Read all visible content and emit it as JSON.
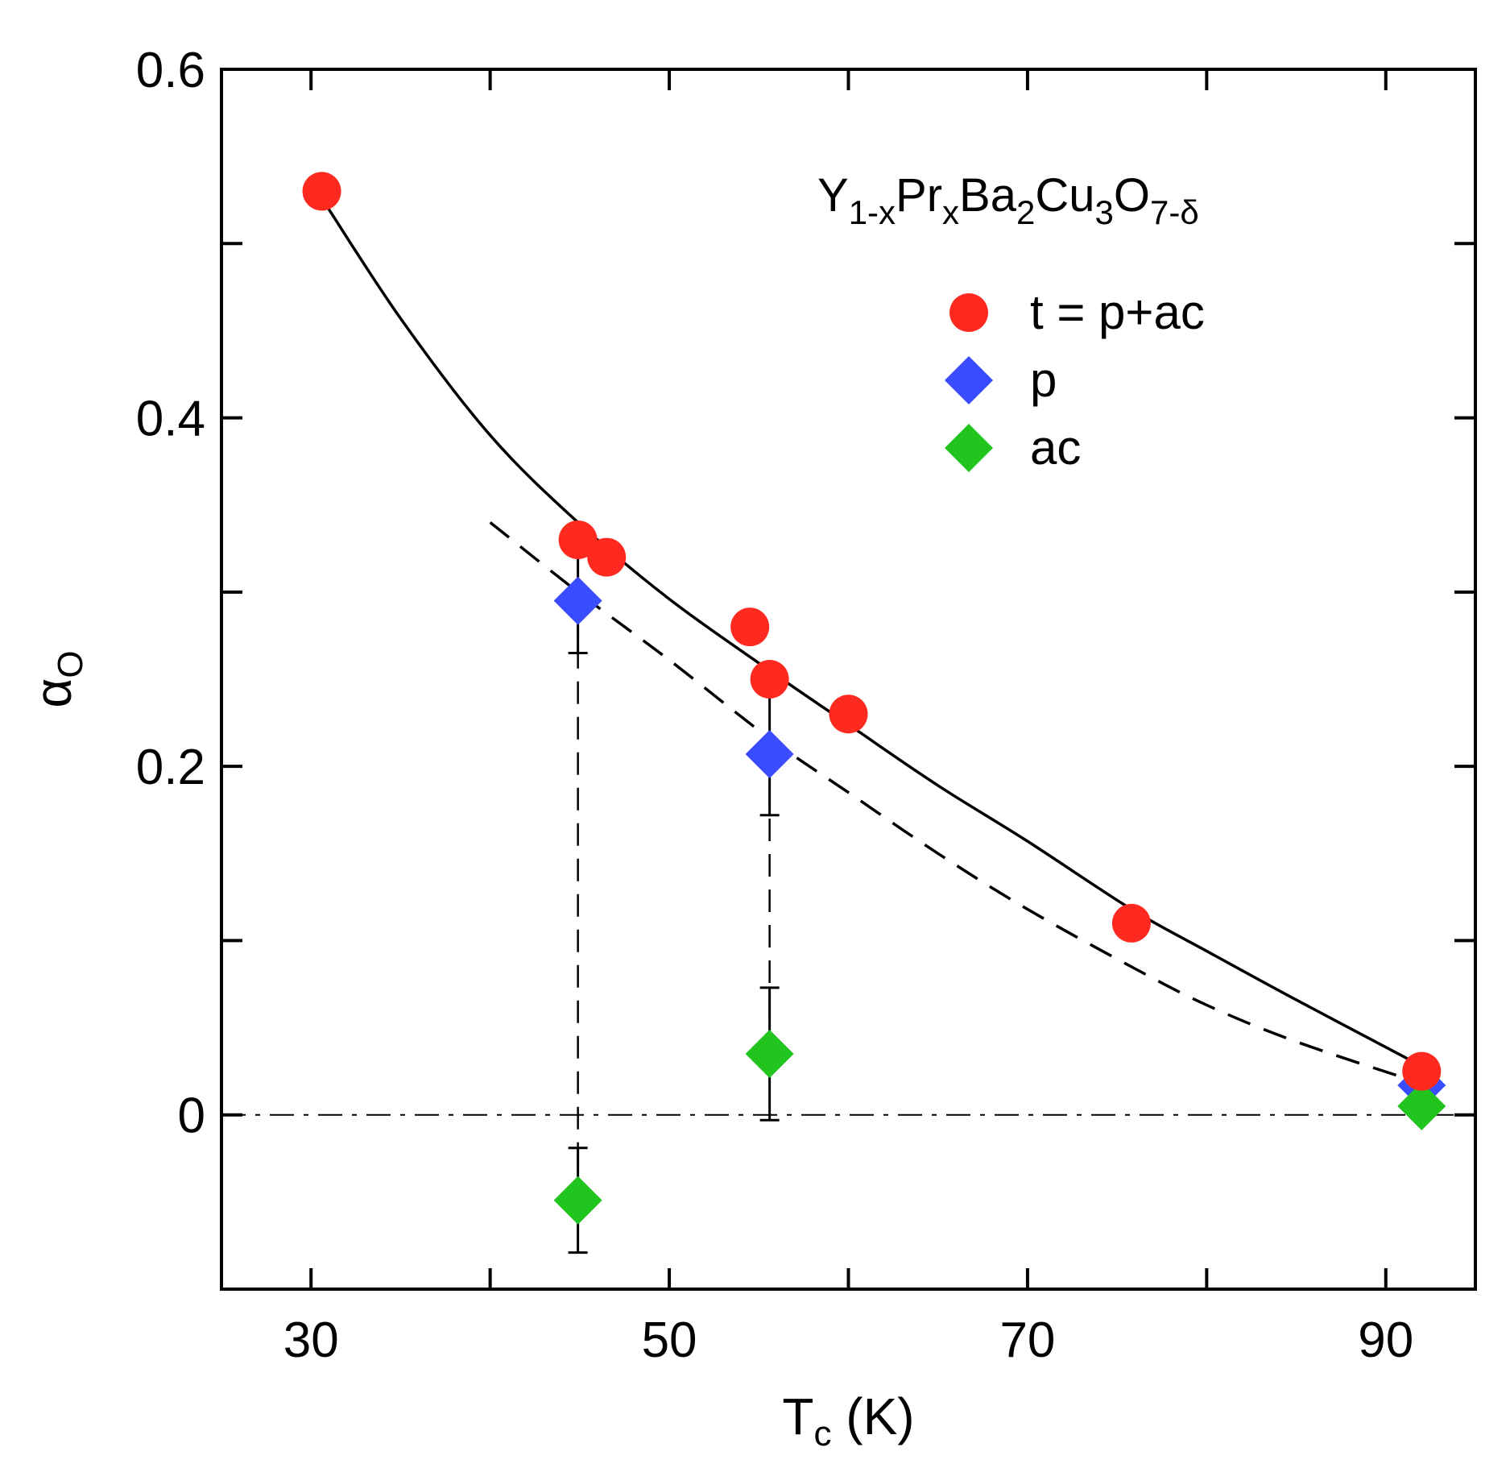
{
  "chart_data": {
    "type": "scatter",
    "xlabel": {
      "main": "T",
      "sub": "c",
      "unit": " (K)"
    },
    "ylabel": {
      "main": "α",
      "sub": "O"
    },
    "xlim": [
      25,
      95
    ],
    "ylim": [
      -0.1,
      0.6
    ],
    "x_major_ticks": [
      30,
      50,
      70,
      90
    ],
    "x_minor_ticks": [
      40,
      60,
      80
    ],
    "y_major_ticks": [
      0,
      0.2,
      0.4,
      0.6
    ],
    "y_minor_ticks": [
      -0.1,
      0.1,
      0.3,
      0.5
    ],
    "x_tick_labels": [
      "30",
      "50",
      "70",
      "90"
    ],
    "y_tick_labels": [
      "0",
      "0.2",
      "0.4",
      "0.6"
    ],
    "grid": false,
    "legend_position": "top-right",
    "annotation": {
      "parts": [
        {
          "text": "Y",
          "sub": false
        },
        {
          "text": "1-x",
          "sub": true
        },
        {
          "text": "Pr",
          "sub": false
        },
        {
          "text": "x",
          "sub": true
        },
        {
          "text": "Ba",
          "sub": false
        },
        {
          "text": "2",
          "sub": true
        },
        {
          "text": "Cu",
          "sub": false
        },
        {
          "text": "3",
          "sub": true
        },
        {
          "text": "O",
          "sub": false
        },
        {
          "text": "7-δ",
          "sub": true
        }
      ]
    },
    "series": [
      {
        "name": "t = p+ac",
        "marker": "circle",
        "color": "#ff2a1f",
        "x": [
          30.6,
          44.9,
          46.5,
          54.5,
          55.6,
          60.0,
          75.8,
          92.0
        ],
        "y": [
          0.53,
          0.33,
          0.32,
          0.28,
          0.25,
          0.23,
          0.11,
          0.025
        ]
      },
      {
        "name": "p",
        "marker": "diamond",
        "color": "#3a4cff",
        "x": [
          44.9,
          55.6,
          92.0
        ],
        "y": [
          0.295,
          0.207,
          0.017
        ],
        "yerr": [
          0.03,
          0.035,
          0.0
        ]
      },
      {
        "name": "ac",
        "marker": "diamond",
        "color": "#22c41e",
        "x": [
          44.9,
          55.6,
          92.0
        ],
        "y": [
          -0.049,
          0.035,
          0.005
        ],
        "yerr": [
          0.03,
          0.038,
          0.0
        ]
      }
    ],
    "lines": [
      {
        "style": "solid",
        "color": "#000000",
        "x": [
          30.6,
          35,
          40,
          44.9,
          50,
          55.6,
          60,
          65,
          70,
          75.8,
          80,
          85,
          92
        ],
        "y": [
          0.526,
          0.457,
          0.39,
          0.34,
          0.296,
          0.255,
          0.224,
          0.189,
          0.157,
          0.118,
          0.094,
          0.066,
          0.028
        ]
      },
      {
        "style": "dashed",
        "color": "#000000",
        "x": [
          40,
          44.9,
          50,
          55.6,
          60,
          65,
          70,
          75.8,
          80,
          85,
          92
        ],
        "y": [
          0.34,
          0.3,
          0.261,
          0.216,
          0.185,
          0.15,
          0.118,
          0.085,
          0.063,
          0.042,
          0.018
        ]
      },
      {
        "style": "dashdot",
        "color": "#000000",
        "x": [
          25,
          95
        ],
        "y": [
          0,
          0
        ]
      },
      {
        "style": "dashed-vertical",
        "color": "#000000",
        "x": [
          44.9,
          44.9
        ],
        "y": [
          -0.049,
          0.295
        ]
      },
      {
        "style": "dashed-vertical",
        "color": "#000000",
        "x": [
          55.6,
          55.6
        ],
        "y": [
          0.035,
          0.207
        ]
      }
    ]
  }
}
